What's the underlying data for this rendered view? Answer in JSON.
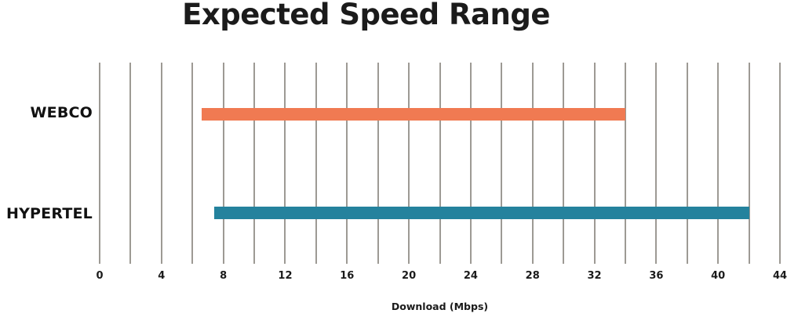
{
  "chart_data": {
    "type": "bar",
    "orientation": "horizontal",
    "variant": "range-bars",
    "title": "Expected Speed Range",
    "categories": [
      "WEBCO",
      "HYPERTEL"
    ],
    "series": [
      {
        "name": "WEBCO",
        "range": [
          6.6,
          34
        ],
        "color": "#F07A52"
      },
      {
        "name": "HYPERTEL",
        "range": [
          7.4,
          42
        ],
        "color": "#24829D"
      }
    ],
    "xlabel": "Download (Mbps)",
    "xlim": [
      0,
      44
    ],
    "x_ticks": [
      0,
      4,
      8,
      12,
      16,
      20,
      24,
      28,
      32,
      36,
      40,
      44
    ],
    "gridline_step": 2,
    "grid": "vertical",
    "legend": "none",
    "colors": {
      "grid": "#9D9A94",
      "text": "#1b1b1b",
      "background": "#FFFFFF"
    }
  }
}
